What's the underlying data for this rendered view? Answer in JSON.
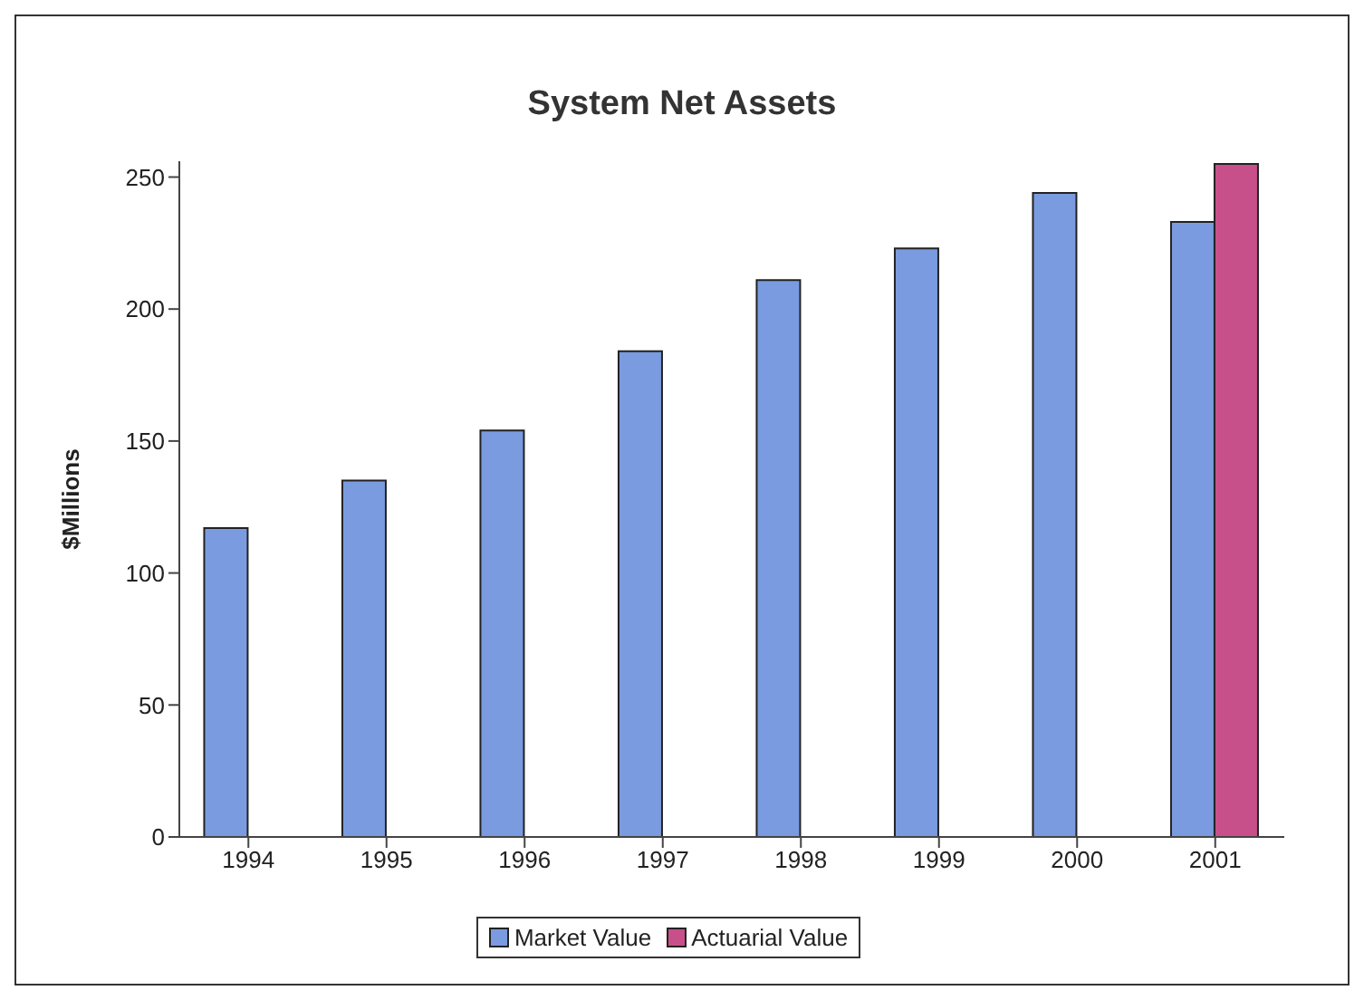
{
  "chart_data": {
    "type": "bar",
    "title": "System Net Assets",
    "ylabel": "$Millions",
    "categories": [
      "1994",
      "1995",
      "1996",
      "1997",
      "1998",
      "1999",
      "2000",
      "2001"
    ],
    "series": [
      {
        "name": "Market Value",
        "color": "#7a9be0",
        "values": [
          117,
          135,
          154,
          184,
          211,
          223,
          244,
          233
        ]
      },
      {
        "name": "Actuarial Value",
        "color": "#c8508a",
        "values": [
          null,
          null,
          null,
          null,
          null,
          null,
          null,
          255
        ]
      }
    ],
    "ylim": [
      0,
      256
    ],
    "yticks": [
      0,
      50,
      100,
      150,
      200,
      250
    ],
    "grid": false,
    "legend": "bottom"
  }
}
